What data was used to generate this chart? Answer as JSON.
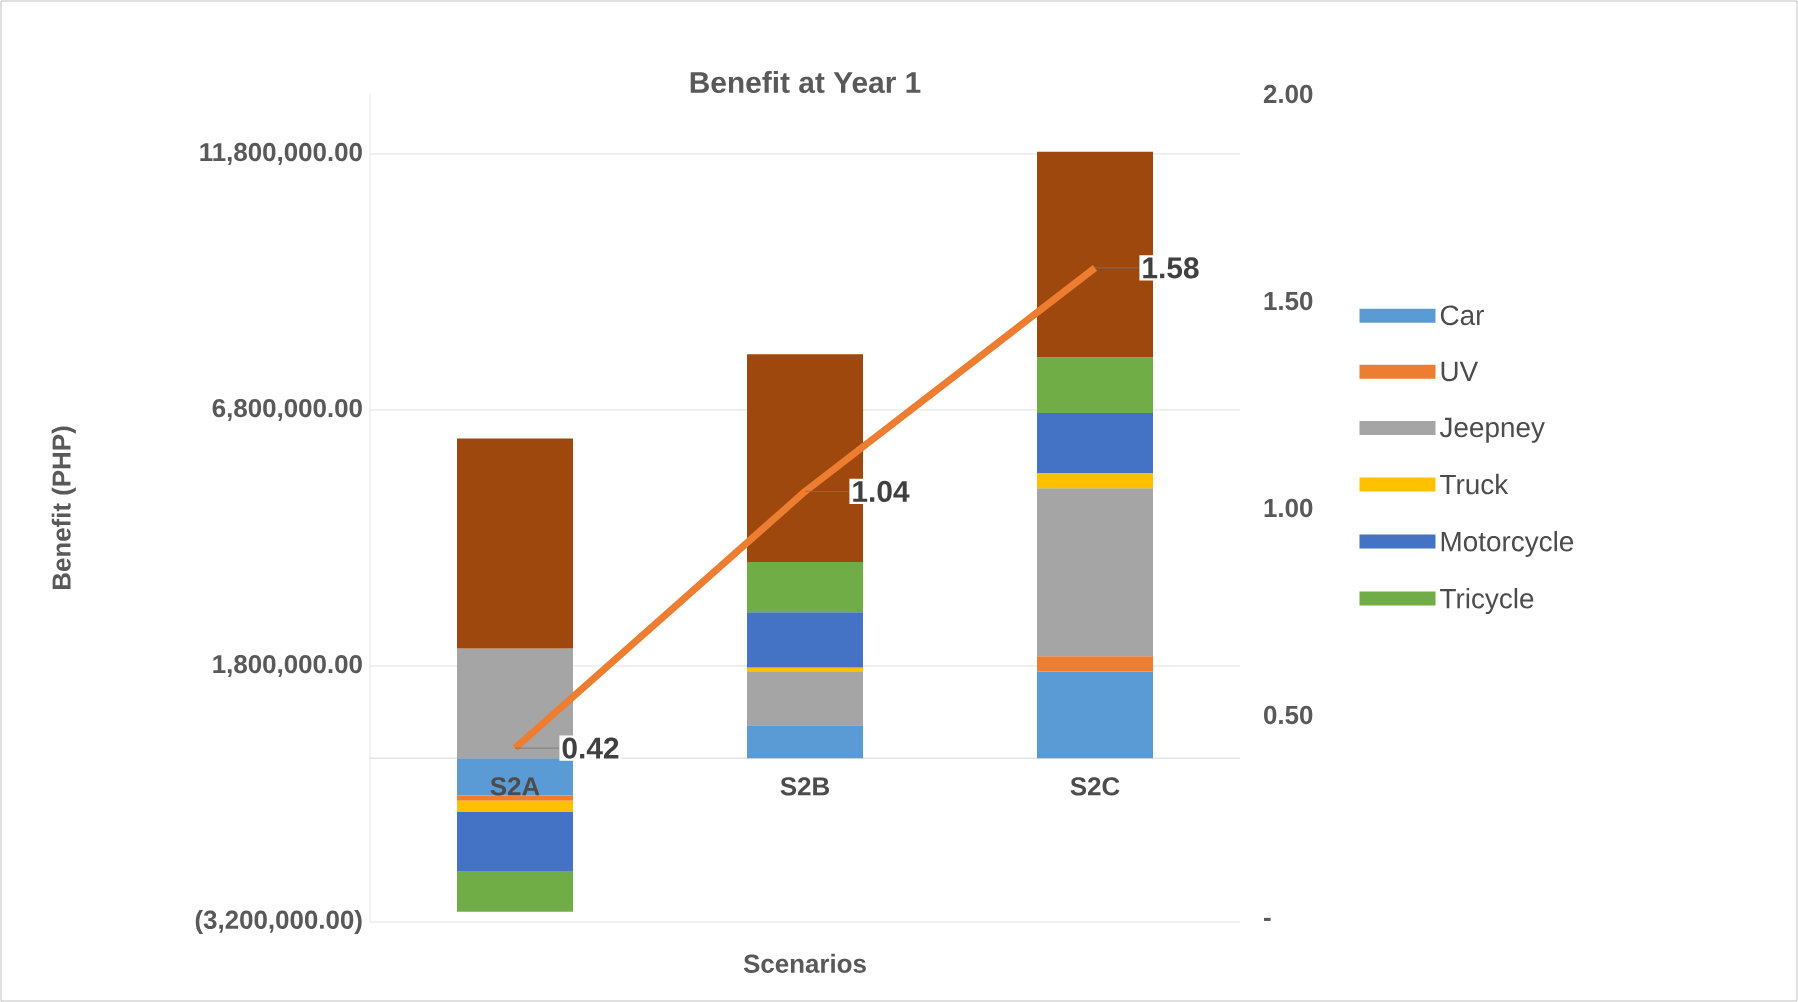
{
  "chart_data": {
    "type": "bar",
    "title": "Benefit at Year 1",
    "xlabel": "Scenarios",
    "ylabel": "Benefit (PHP)",
    "stacked": true,
    "categories": [
      "S2A",
      "S2B",
      "S2C"
    ],
    "series": [
      {
        "name": "Car",
        "color": "#5b9bd5",
        "values": [
          -730000,
          640000,
          1690000
        ]
      },
      {
        "name": "UV",
        "color": "#ed7d31",
        "values": [
          -100000,
          0,
          300000
        ]
      },
      {
        "name": "Jeepney",
        "color": "#a5a5a5",
        "values": [
          2140000,
          1040000,
          3280000
        ]
      },
      {
        "name": "Truck",
        "color": "#ffc000",
        "values": [
          -220000,
          90000,
          300000
        ]
      },
      {
        "name": "Motorcycle",
        "color": "#4472c4",
        "values": [
          -1170000,
          1080000,
          1170000
        ]
      },
      {
        "name": "Tricycle",
        "color": "#70ad47",
        "values": [
          -780000,
          980000,
          1090000
        ]
      },
      {
        "color": "#9e480e",
        "values": [
          4100000,
          4060000,
          4010000
        ]
      },
      {
        "type": "line",
        "axis": "y2",
        "color": "#ed7d31",
        "values": [
          0.42,
          1.04,
          1.58
        ],
        "value_labels": [
          "0.42",
          "1.04",
          "1.58"
        ]
      }
    ],
    "ylim": [
      -3200000,
      12970000
    ],
    "yticks": [
      {
        "value": -3200000,
        "label": "(3,200,000.00)"
      },
      {
        "value": 1800000,
        "label": "1,800,000.00"
      },
      {
        "value": 6800000,
        "label": "6,800,000.00"
      },
      {
        "value": 11800000,
        "label": "11,800,000.00"
      }
    ],
    "y2lim": [
      0,
      2
    ],
    "y2ticks": [
      {
        "value": 0,
        "label": "-"
      },
      {
        "value": 0.5,
        "label": "0.50"
      },
      {
        "value": 1,
        "label": "1.00"
      },
      {
        "value": 1.5,
        "label": "1.50"
      },
      {
        "value": 2,
        "label": "2.00"
      }
    ],
    "grid": "y",
    "legend": "right"
  }
}
